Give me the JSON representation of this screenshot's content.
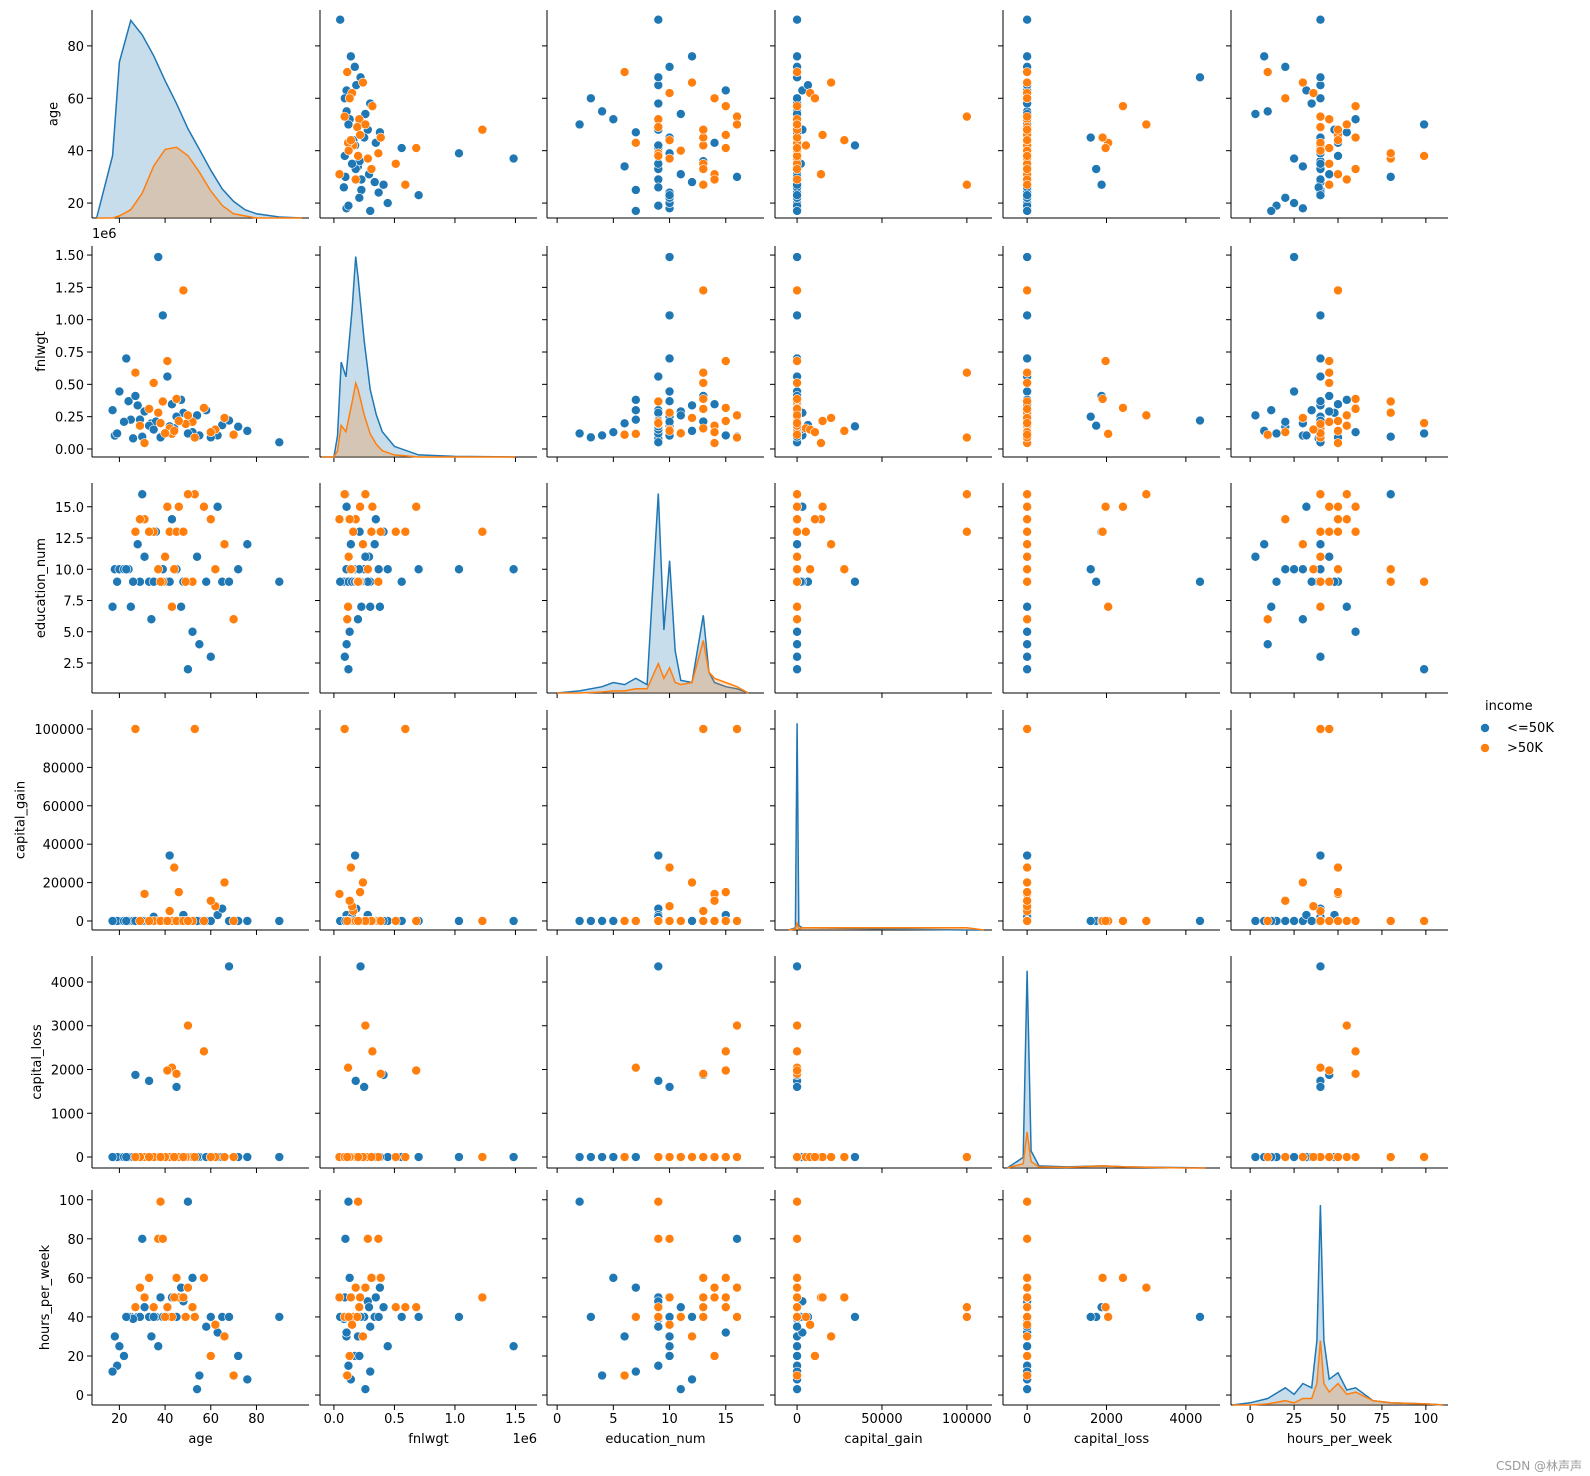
{
  "chart_data": {
    "type": "pairplot",
    "hue": "income",
    "watermark": "CSDN @林声声",
    "variables": [
      {
        "name": "age",
        "xlim": [
          8,
          103
        ],
        "xticks": [
          20,
          40,
          60,
          80
        ],
        "ylim": [
          14.3,
          93.7
        ],
        "yticks": [
          20,
          40,
          60,
          80
        ],
        "kde": {
          "x": [
            10,
            17,
            20,
            25,
            30,
            35,
            40,
            45,
            50,
            55,
            60,
            65,
            70,
            75,
            80,
            90,
            100
          ],
          "density": [
            [
              0,
              0.3,
              0.75,
              0.95,
              0.88,
              0.78,
              0.66,
              0.55,
              0.43,
              0.33,
              0.23,
              0.14,
              0.08,
              0.04,
              0.02,
              0.005,
              0
            ],
            [
              0,
              0,
              0.01,
              0.04,
              0.12,
              0.25,
              0.33,
              0.34,
              0.3,
              0.22,
              0.13,
              0.06,
              0.02,
              0.01,
              0,
              0,
              0
            ]
          ]
        }
      },
      {
        "name": "fnlwgt",
        "offset_label": "1e6",
        "xlim": [
          -115000,
          1678000
        ],
        "xticks": [
          {
            "value": 0,
            "label": "0.0"
          },
          {
            "value": 500000,
            "label": "0.5"
          },
          {
            "value": 1000000,
            "label": "1.0"
          },
          {
            "value": 1500000,
            "label": "1.5"
          }
        ],
        "ylim": [
          -62000,
          1570000
        ],
        "yticks": [
          {
            "value": 0,
            "label": "0.00"
          },
          {
            "value": 250000,
            "label": "0.25"
          },
          {
            "value": 500000,
            "label": "0.50"
          },
          {
            "value": 750000,
            "label": "0.75"
          },
          {
            "value": 1000000,
            "label": "1.00"
          },
          {
            "value": 1250000,
            "label": "1.25"
          },
          {
            "value": 1500000,
            "label": "1.50"
          }
        ],
        "kde": {
          "x": [
            -100000,
            0,
            30000,
            60000,
            100000,
            150000,
            180000,
            200000,
            250000,
            300000,
            350000,
            400000,
            500000,
            700000,
            1000000,
            1500000
          ],
          "density": [
            [
              0,
              0,
              0.1,
              0.45,
              0.38,
              0.7,
              0.95,
              0.85,
              0.55,
              0.32,
              0.2,
              0.12,
              0.05,
              0.01,
              0.003,
              0
            ],
            [
              0,
              0,
              0.03,
              0.15,
              0.12,
              0.26,
              0.35,
              0.32,
              0.2,
              0.11,
              0.06,
              0.03,
              0.01,
              0,
              0,
              0
            ]
          ]
        }
      },
      {
        "name": "education_num",
        "xlim": [
          -0.9,
          18.4
        ],
        "xticks": [
          0,
          5,
          10,
          15
        ],
        "ylim": [
          0.1,
          16.9
        ],
        "yticks": [
          2.5,
          {
            "value": 5,
            "label": "5.0"
          },
          7.5,
          {
            "value": 10,
            "label": "10.0"
          },
          12.5,
          {
            "value": 15,
            "label": "15.0"
          }
        ],
        "kde": {
          "x": [
            0,
            2,
            4,
            5,
            6,
            7,
            8,
            9,
            9.5,
            10,
            10.5,
            11,
            12,
            13,
            13.5,
            14,
            15,
            16,
            17
          ],
          "density": [
            [
              0,
              0.01,
              0.03,
              0.05,
              0.04,
              0.07,
              0.04,
              0.95,
              0.3,
              0.63,
              0.2,
              0.06,
              0.05,
              0.37,
              0.1,
              0.05,
              0.03,
              0.02,
              0
            ],
            [
              0,
              0,
              0.005,
              0.01,
              0.01,
              0.02,
              0.02,
              0.14,
              0.07,
              0.12,
              0.05,
              0.04,
              0.05,
              0.25,
              0.1,
              0.07,
              0.05,
              0.03,
              0
            ]
          ]
        }
      },
      {
        "name": "capital_gain",
        "xlim": [
          -13000,
          114800
        ],
        "xticks": [
          0,
          50000,
          100000
        ],
        "ylim": [
          -4700,
          109900
        ],
        "yticks": [
          0,
          20000,
          40000,
          60000,
          80000,
          100000
        ],
        "kde": {
          "x": [
            -5000,
            -1000,
            0,
            1000,
            3000,
            10000,
            50000,
            100000,
            110000
          ],
          "density": [
            [
              0,
              0.01,
              0.94,
              0.02,
              0.01,
              0.01,
              0.005,
              0,
              0
            ],
            [
              0,
              0.005,
              0.03,
              0.005,
              0.01,
              0.01,
              0.01,
              0.01,
              0
            ]
          ]
        }
      },
      {
        "name": "capital_loss",
        "xlim": [
          -608,
          4860
        ],
        "xticks": [
          0,
          2000,
          4000
        ],
        "ylim": [
          -251,
          4594
        ],
        "yticks": [
          0,
          1000,
          2000,
          3000,
          4000
        ],
        "kde": {
          "x": [
            -500,
            -100,
            0,
            100,
            300,
            1000,
            1900,
            2500,
            4000,
            4500
          ],
          "density": [
            [
              0,
              0.05,
              0.93,
              0.08,
              0.01,
              0.005,
              0.01,
              0.005,
              0.002,
              0
            ],
            [
              0,
              0.02,
              0.17,
              0.03,
              0.005,
              0.003,
              0.01,
              0.005,
              0,
              0
            ]
          ]
        }
      },
      {
        "name": "hours_per_week",
        "xlim": [
          -10.9,
          112.6
        ],
        "xticks": [
          0,
          25,
          50,
          75,
          100
        ],
        "ylim": [
          -5.1,
          105
        ],
        "yticks": [
          0,
          20,
          40,
          60,
          80,
          100
        ],
        "kde": {
          "x": [
            -10,
            0,
            10,
            20,
            25,
            30,
            35,
            38,
            40,
            42,
            45,
            50,
            55,
            60,
            70,
            80,
            100,
            110
          ],
          "density": [
            [
              0,
              0.01,
              0.03,
              0.08,
              0.05,
              0.1,
              0.08,
              0.3,
              0.93,
              0.3,
              0.12,
              0.15,
              0.07,
              0.08,
              0.02,
              0.01,
              0.005,
              0
            ],
            [
              0,
              0,
              0.005,
              0.02,
              0.01,
              0.03,
              0.03,
              0.1,
              0.3,
              0.1,
              0.06,
              0.1,
              0.05,
              0.06,
              0.02,
              0.01,
              0.005,
              0
            ]
          ]
        }
      }
    ],
    "series": [
      {
        "name": "<=50K",
        "color": "#1f77b4",
        "values": [
          [
            25,
            38,
            28,
            44,
            18,
            34,
            29,
            63,
            24,
            55,
            65,
            36,
            26,
            58,
            48,
            43,
            20,
            37,
            72,
            33,
            45,
            19,
            31,
            52,
            22,
            41,
            60,
            27,
            35,
            47,
            90,
            23,
            39,
            68,
            50,
            30,
            17,
            42,
            54,
            76
          ],
          [
            226802,
            89814,
            336951,
            160323,
            103497,
            198693,
            227026,
            104626,
            369667,
            104996,
            184454,
            212465,
            82091,
            299831,
            279724,
            346189,
            444554,
            1484705,
            172640,
            180000,
            250000,
            120000,
            290000,
            130000,
            210000,
            560000,
            90000,
            410000,
            150000,
            380000,
            51744,
            700000,
            1033222,
            220000,
            120000,
            95000,
            300000,
            175000,
            260000,
            140000
          ],
          [
            7,
            9,
            12,
            10,
            10,
            6,
            9,
            15,
            10,
            4,
            9,
            13,
            9,
            9,
            9,
            14,
            10,
            10,
            10,
            9,
            10,
            9,
            11,
            5,
            10,
            9,
            3,
            13,
            9,
            7,
            9,
            10,
            10,
            9,
            2,
            16,
            7,
            9,
            11,
            12
          ],
          [
            0,
            0,
            0,
            0,
            0,
            0,
            0,
            3103,
            0,
            0,
            6418,
            0,
            0,
            0,
            3103,
            0,
            0,
            0,
            0,
            0,
            0,
            0,
            0,
            0,
            0,
            0,
            0,
            0,
            2174,
            0,
            0,
            0,
            0,
            0,
            0,
            0,
            0,
            34095,
            0,
            0
          ],
          [
            0,
            0,
            0,
            0,
            0,
            0,
            0,
            0,
            0,
            0,
            0,
            0,
            0,
            0,
            0,
            0,
            0,
            0,
            0,
            1740,
            1602,
            0,
            0,
            0,
            0,
            0,
            0,
            1876,
            0,
            0,
            0,
            0,
            0,
            4356,
            0,
            0,
            0,
            0,
            0,
            0
          ],
          [
            40,
            50,
            40,
            40,
            30,
            30,
            40,
            32,
            40,
            10,
            40,
            40,
            39,
            35,
            48,
            50,
            25,
            25,
            20,
            40,
            40,
            15,
            45,
            60,
            20,
            40,
            40,
            45,
            40,
            55,
            40,
            40,
            40,
            40,
            99,
            80,
            12,
            40,
            3,
            8
          ]
        ]
      },
      {
        "name": ">50K",
        "color": "#ff7f0e",
        "values": [
          [
            52,
            37,
            31,
            42,
            43,
            39,
            49,
            45,
            53,
            40,
            57,
            46,
            35,
            62,
            29,
            48,
            66,
            33,
            44,
            50,
            38,
            60,
            27,
            70,
            41
          ],
          [
            209642,
            280464,
            45781,
            159449,
            117037,
            367260,
            193366,
            386940,
            88506,
            121772,
            317847,
            216414,
            511000,
            150000,
            180000,
            1226583,
            240000,
            310000,
            140000,
            260000,
            200000,
            130000,
            590000,
            110000,
            680000
          ],
          [
            9,
            10,
            14,
            13,
            7,
            9,
            9,
            13,
            16,
            11,
            15,
            15,
            13,
            10,
            14,
            13,
            12,
            13,
            10,
            16,
            9,
            14,
            13,
            6,
            15
          ],
          [
            0,
            0,
            14084,
            5178,
            0,
            0,
            0,
            0,
            99999,
            0,
            0,
            15024,
            0,
            7688,
            0,
            0,
            20051,
            0,
            27828,
            0,
            0,
            10520,
            99999,
            0,
            0
          ],
          [
            0,
            0,
            0,
            0,
            2042,
            0,
            0,
            1902,
            0,
            0,
            2415,
            0,
            0,
            0,
            0,
            0,
            0,
            0,
            0,
            3004,
            0,
            0,
            0,
            0,
            1977
          ],
          [
            45,
            80,
            50,
            40,
            40,
            80,
            40,
            60,
            40,
            40,
            60,
            50,
            45,
            36,
            55,
            50,
            30,
            60,
            50,
            55,
            99,
            20,
            45,
            10,
            45
          ]
        ]
      }
    ]
  }
}
